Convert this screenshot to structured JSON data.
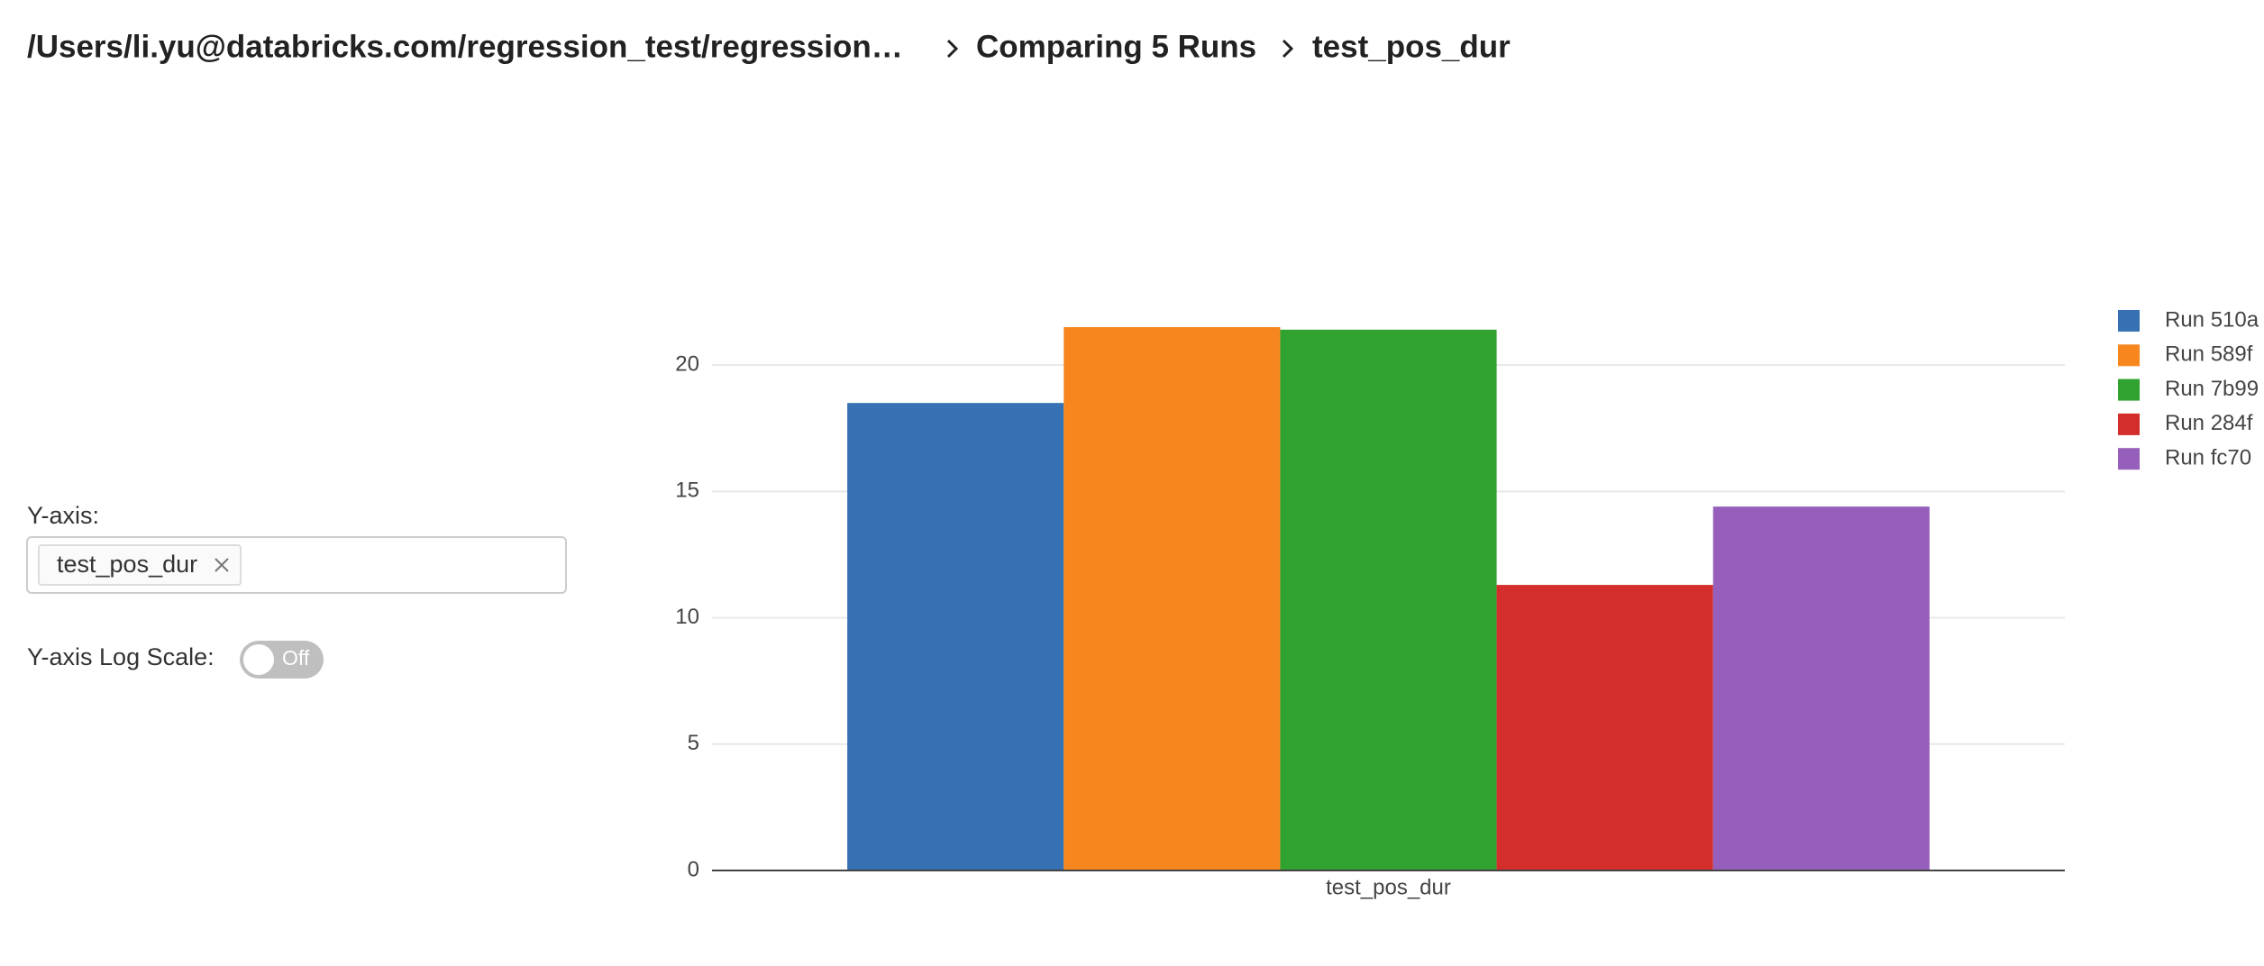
{
  "breadcrumb": [
    "/Users/li.yu@databricks.com/regression_test/regression…",
    "Comparing 5 Runs",
    "test_pos_dur"
  ],
  "controls": {
    "y_axis_label": "Y-axis:",
    "y_axis_selected": "test_pos_dur",
    "log_scale_label": "Y-axis Log Scale:",
    "log_scale_state": "Off"
  },
  "chart_data": {
    "type": "bar",
    "categories": [
      "test_pos_dur"
    ],
    "series": [
      {
        "name": "Run 510a",
        "color": "#3672b3",
        "values": [
          18.5
        ]
      },
      {
        "name": "Run 589f",
        "color": "#f8861e",
        "values": [
          21.5
        ]
      },
      {
        "name": "Run 7b99",
        "color": "#2fa22f",
        "values": [
          21.4
        ]
      },
      {
        "name": "Run 284f",
        "color": "#d42e2c",
        "values": [
          11.3
        ]
      },
      {
        "name": "Run fc70",
        "color": "#955fbb",
        "values": [
          14.4
        ]
      }
    ],
    "ylim": [
      0,
      22.5
    ],
    "yticks": [
      0,
      5,
      10,
      15,
      20
    ],
    "grid": true
  }
}
